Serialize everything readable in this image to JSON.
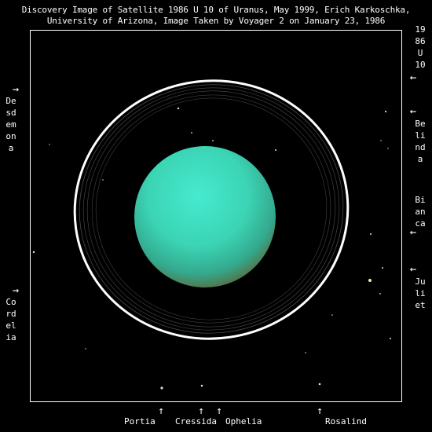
{
  "caption": {
    "line1": "Discovery Image of Satellite 1986 U 10 of Uranus,  May 1999,  Erich Karkoschka,",
    "line2": "University of Arizona,  Image Taken by Voyager 2 on January 23, 1986"
  },
  "labels": {
    "left_top": "Desdemona",
    "left_bottom": "Cordelia",
    "right_top": "1986 U 10",
    "right_mid1": "Belinda",
    "right_mid2": "Bianca",
    "right_bottom": "Juliet",
    "bottom1": "Portia",
    "bottom2": "Cressida",
    "bottom3": "Ophelia",
    "bottom4": "Rosalind"
  },
  "glyphs": {
    "arrow_right": "→",
    "arrow_left": "←",
    "arrow_up": "↑"
  },
  "colors": {
    "planet": "#3fe3c4",
    "planet_edge": "#2c8a74",
    "ring": "#ffffff",
    "frame": "#ffffff",
    "background": "#000000"
  }
}
